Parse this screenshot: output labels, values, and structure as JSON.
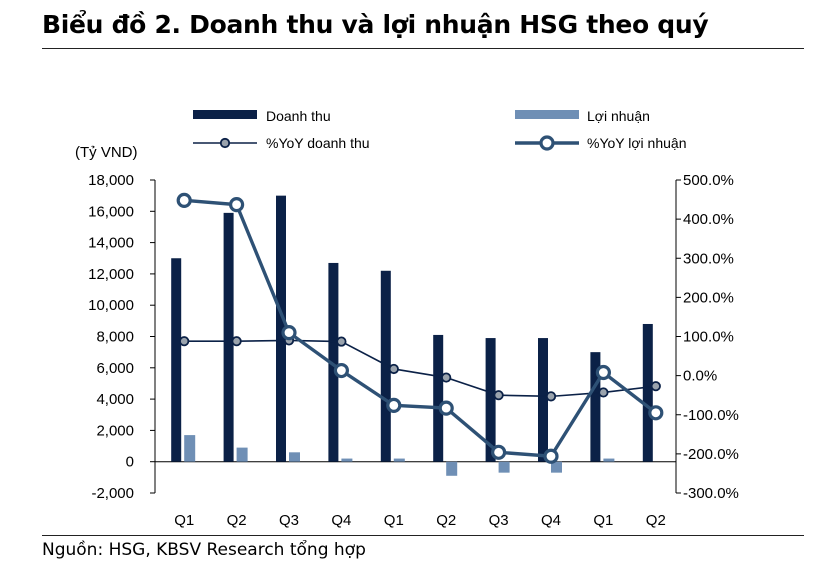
{
  "title": "Biểu đồ 2. Doanh thu và lợi nhuận HSG theo quý",
  "source": "Nguồn: HSG, KBSV Research tổng hợp",
  "colors": {
    "revenue": "#0b2147",
    "profit": "#6f8fb5",
    "yoy_revenue": "#0b2147",
    "yoy_profit": "#2e5175"
  },
  "chart_data": {
    "type": "bar",
    "categories": [
      "Q1",
      "Q2",
      "Q3",
      "Q4",
      "Q1",
      "Q2",
      "Q3",
      "Q4",
      "Q1",
      "Q2"
    ],
    "y_unit": "(Tỷ VND)",
    "ylim": [
      -2000,
      18000
    ],
    "y_ticks": [
      -2000,
      0,
      2000,
      4000,
      6000,
      8000,
      10000,
      12000,
      14000,
      16000,
      18000
    ],
    "y_tick_labels": [
      "-2,000",
      "0",
      "2,000",
      "4,000",
      "6,000",
      "8,000",
      "10,000",
      "12,000",
      "14,000",
      "16,000",
      "18,000"
    ],
    "y2lim": [
      -300,
      500
    ],
    "y2_ticks": [
      -300,
      -200,
      -100,
      0,
      100,
      200,
      300,
      400,
      500
    ],
    "y2_tick_labels": [
      "-300.0%",
      "-200.0%",
      "-100.0%",
      "0.0%",
      "100.0%",
      "200.0%",
      "300.0%",
      "400.0%",
      "500.0%"
    ],
    "grid": false,
    "legend_position": "top",
    "series": [
      {
        "name": "Doanh thu",
        "kind": "bar",
        "axis": "left",
        "values": [
          13000,
          15900,
          17000,
          12700,
          12200,
          8100,
          7900,
          7900,
          7000,
          8800
        ]
      },
      {
        "name": "Lợi nhuận",
        "kind": "bar",
        "axis": "left",
        "values": [
          1700,
          900,
          600,
          200,
          200,
          -900,
          -700,
          -700,
          200,
          0
        ]
      },
      {
        "name": "%YoY doanh thu",
        "kind": "line",
        "axis": "right",
        "values": [
          88,
          88,
          90,
          87,
          17,
          -5,
          -50,
          -53,
          -43,
          -27
        ]
      },
      {
        "name": "%YoY lợi nhuận",
        "kind": "line",
        "axis": "right",
        "values": [
          448,
          437,
          110,
          13,
          -76,
          -83,
          -196,
          -206,
          8,
          -95
        ]
      }
    ]
  }
}
